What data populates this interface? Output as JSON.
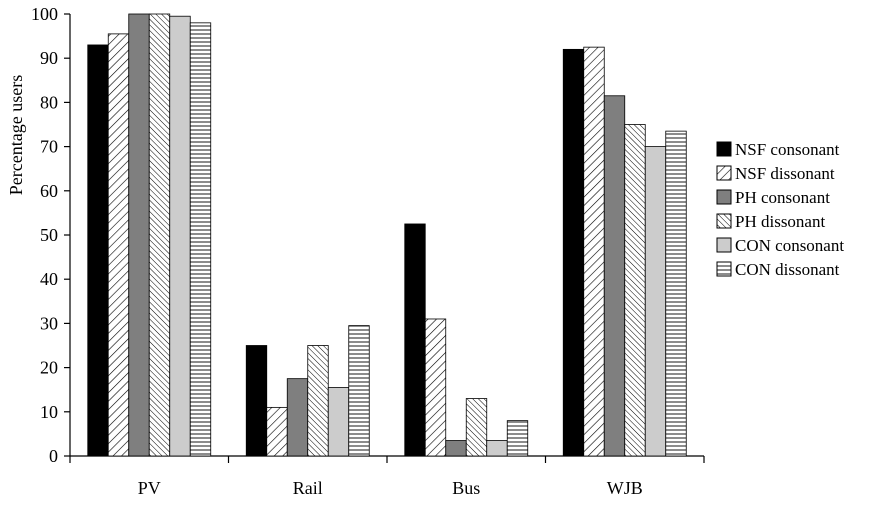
{
  "chart_data": {
    "type": "bar",
    "ylabel": "Percentage users",
    "xlabel": "",
    "ylim": [
      0,
      100
    ],
    "yticks": [
      0,
      10,
      20,
      30,
      40,
      50,
      60,
      70,
      80,
      90,
      100
    ],
    "grid": false,
    "legend_position": "right",
    "categories": [
      "PV",
      "Rail",
      "Bus",
      "WJB"
    ],
    "series": [
      {
        "name": "NSF consonant",
        "fill": "solid",
        "color": "#000000",
        "values": [
          93,
          25,
          52.5,
          92
        ]
      },
      {
        "name": "NSF dissonant",
        "fill": "diagonal-hatch",
        "color": "#ffffff",
        "values": [
          95.5,
          11,
          31,
          92.5
        ]
      },
      {
        "name": "PH consonant",
        "fill": "solid",
        "color": "#7f7f7f",
        "values": [
          100,
          17.5,
          3.5,
          81.5
        ]
      },
      {
        "name": "PH dissonant",
        "fill": "diagonal-hatch-dense",
        "color": "#ffffff",
        "values": [
          100,
          25,
          13,
          75
        ]
      },
      {
        "name": "CON consonant",
        "fill": "solid",
        "color": "#cccccc",
        "values": [
          99.5,
          15.5,
          3.5,
          70
        ]
      },
      {
        "name": "CON dissonant",
        "fill": "horizontal-lines",
        "color": "#ffffff",
        "values": [
          98,
          29.5,
          8,
          73.5
        ]
      }
    ]
  }
}
